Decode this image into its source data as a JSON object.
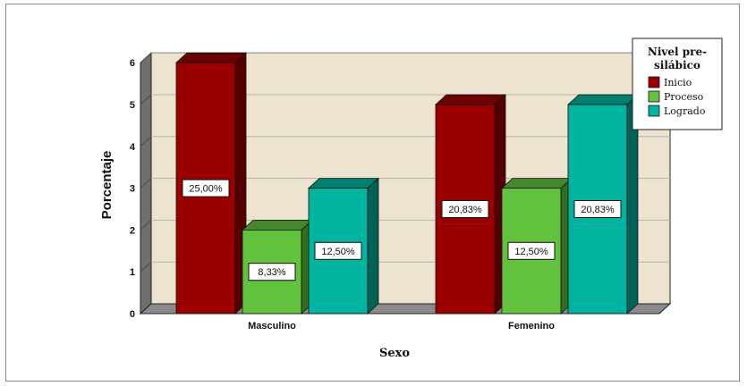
{
  "chart_data": {
    "type": "bar",
    "categories": [
      "Masculino",
      "Femenino"
    ],
    "series": [
      {
        "name": "Inicio",
        "values": [
          6,
          5
        ],
        "labels": [
          "25,00%",
          "20,83%"
        ],
        "color": "#9b0000"
      },
      {
        "name": "Proceso",
        "values": [
          2,
          3
        ],
        "labels": [
          "8,33%",
          "12,50%"
        ],
        "color": "#62c23d"
      },
      {
        "name": "Logrado",
        "values": [
          3,
          5
        ],
        "labels": [
          "12,50%",
          "20,83%"
        ],
        "color": "#00b4a0"
      }
    ],
    "xlabel": "Sexo",
    "ylabel": "Porcentaje",
    "ylim": [
      0,
      6
    ],
    "yticks": [
      "0",
      "1",
      "2",
      "3",
      "4",
      "5",
      "6"
    ],
    "legend": {
      "title_lines": [
        "Nivel pre-",
        "silábico"
      ],
      "position": "top-right"
    },
    "grid": true,
    "style": "3d",
    "plot_background": "#ece4d0"
  }
}
